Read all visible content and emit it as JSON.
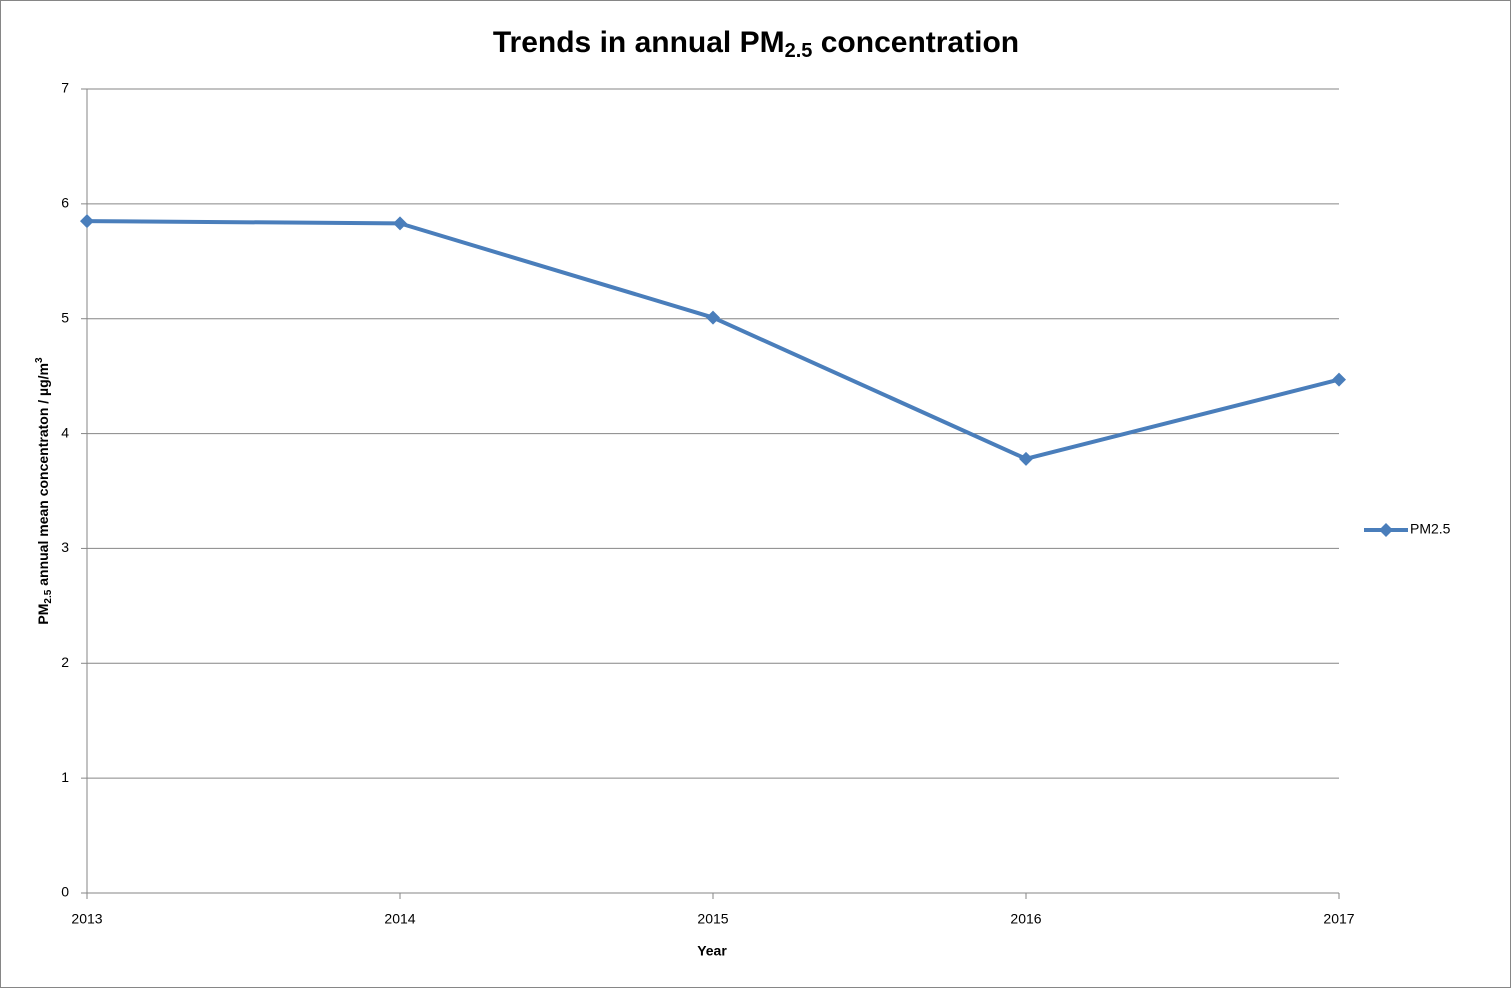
{
  "chart_data": {
    "type": "line",
    "title": [
      "Trends in annual PM",
      "2.5",
      " concentration"
    ],
    "x_label": "Year",
    "y_label": [
      "PM",
      "2.5",
      " annual mean concentraton / µg/m",
      "3"
    ],
    "x": [
      2013,
      2014,
      2015,
      2016,
      2017
    ],
    "series": [
      {
        "name": "PM2.5",
        "color": "#4a7ebb",
        "values": [
          5.85,
          5.83,
          5.01,
          3.78,
          4.47
        ]
      }
    ],
    "xlim": [
      2013,
      2017
    ],
    "xticks": [
      2013,
      2014,
      2015,
      2016,
      2017
    ],
    "ylim": [
      0,
      7
    ],
    "yticks": [
      0,
      1,
      2,
      3,
      4,
      5,
      6,
      7
    ],
    "grid": true,
    "legend": "right"
  }
}
